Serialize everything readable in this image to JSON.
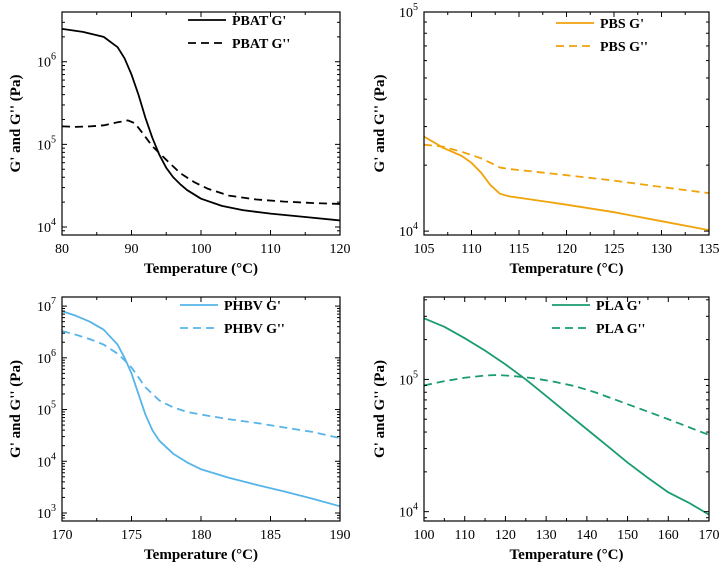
{
  "chart_data": [
    {
      "id": "pbat",
      "type": "line",
      "xlabel": "Temperature (°C)",
      "ylabel": "G' and G'' (Pa)",
      "xlim": [
        80,
        120
      ],
      "ylim": [
        8000,
        4000000
      ],
      "yscale": "log",
      "xticks": [
        80,
        90,
        100,
        110,
        120
      ],
      "xtick_labels": [
        "80",
        "90",
        "100",
        "110",
        "120"
      ],
      "yticks": [
        10000,
        100000,
        1000000
      ],
      "ytick_labels": [
        [
          "10",
          "4"
        ],
        [
          "10",
          "5"
        ],
        [
          "10",
          "6"
        ]
      ],
      "legend_position": "top-right",
      "series": [
        {
          "name": "PBAT G'",
          "color": "#000000",
          "dash": "solid",
          "x": [
            80,
            83,
            86,
            88,
            89,
            90,
            91,
            92,
            93,
            94,
            95,
            96,
            97,
            98,
            100,
            103,
            106,
            110,
            115,
            120
          ],
          "y": [
            2500000,
            2300000,
            2000000,
            1500000,
            1100000,
            700000,
            400000,
            210000,
            120000,
            75000,
            52000,
            40000,
            33000,
            28000,
            22000,
            18000,
            16000,
            14500,
            13200,
            12000
          ]
        },
        {
          "name": "PBAT G''",
          "color": "#000000",
          "dash": "dashed",
          "x": [
            80,
            82,
            84,
            86,
            88,
            89.5,
            90.5,
            91.5,
            93,
            95,
            97,
            99,
            101,
            104,
            108,
            112,
            116,
            120
          ],
          "y": [
            165000,
            163000,
            165000,
            170000,
            185000,
            195000,
            180000,
            140000,
            95000,
            65000,
            45000,
            35000,
            29000,
            24000,
            21500,
            20300,
            19500,
            19000
          ]
        }
      ]
    },
    {
      "id": "pbs",
      "type": "line",
      "xlabel": "Temperature (°C)",
      "ylabel": "G' and G'' (Pa)",
      "xlim": [
        105,
        135
      ],
      "ylim": [
        9600,
        100000
      ],
      "yscale": "log",
      "xticks": [
        105,
        110,
        115,
        120,
        125,
        130,
        135
      ],
      "xtick_labels": [
        "105",
        "110",
        "115",
        "120",
        "125",
        "130",
        "135"
      ],
      "yticks": [
        10000,
        100000
      ],
      "ytick_labels": [
        [
          "10",
          "4"
        ],
        [
          "10",
          "5"
        ]
      ],
      "legend_position": "top-right",
      "series": [
        {
          "name": "PBS G'",
          "color": "#f0a30a",
          "dash": "solid",
          "x": [
            105,
            106,
            107,
            108,
            109,
            110,
            111,
            112,
            113,
            114,
            116,
            118,
            120,
            125,
            130,
            135
          ],
          "y": [
            27000,
            25500,
            24000,
            23000,
            22000,
            20500,
            18500,
            16200,
            14800,
            14400,
            14000,
            13600,
            13200,
            12200,
            11100,
            10100
          ]
        },
        {
          "name": "PBS G''",
          "color": "#f0a30a",
          "dash": "dashed",
          "x": [
            105,
            107,
            109,
            111,
            112,
            113,
            114,
            116,
            120,
            125,
            130,
            135
          ],
          "y": [
            24800,
            24300,
            23000,
            21500,
            20500,
            19500,
            19200,
            18800,
            18000,
            17000,
            15900,
            14900
          ]
        }
      ]
    },
    {
      "id": "phbv",
      "type": "line",
      "xlabel": "Temperature (°C)",
      "ylabel": "G' and G'' (Pa)",
      "xlim": [
        170,
        190
      ],
      "ylim": [
        700,
        15000000
      ],
      "yscale": "log",
      "xticks": [
        170,
        175,
        180,
        185,
        190
      ],
      "xtick_labels": [
        "170",
        "175",
        "180",
        "185",
        "190"
      ],
      "yticks": [
        1000,
        10000,
        100000,
        1000000,
        10000000
      ],
      "ytick_labels": [
        [
          "10",
          "3"
        ],
        [
          "10",
          "4"
        ],
        [
          "10",
          "5"
        ],
        [
          "10",
          "6"
        ],
        [
          "10",
          "7"
        ]
      ],
      "legend_position": "top-right",
      "series": [
        {
          "name": "PHBV G'",
          "color": "#56b4e9",
          "dash": "solid",
          "x": [
            170,
            171,
            172,
            173,
            174,
            174.5,
            175,
            175.5,
            176,
            176.5,
            177,
            178,
            179,
            180,
            182,
            184,
            186,
            188,
            190
          ],
          "y": [
            8000000,
            6500000,
            5000000,
            3500000,
            1800000,
            1000000,
            500000,
            200000,
            80000,
            40000,
            25000,
            14000,
            9500,
            7000,
            4800,
            3500,
            2600,
            1900,
            1350
          ]
        },
        {
          "name": "PHBV G''",
          "color": "#56b4e9",
          "dash": "dashed",
          "x": [
            170,
            171,
            172,
            173,
            174,
            174.5,
            175,
            175.5,
            176,
            177,
            178,
            179,
            180,
            182,
            184,
            186,
            188,
            190
          ],
          "y": [
            3300000,
            2800000,
            2300000,
            1800000,
            1200000,
            900000,
            650000,
            420000,
            270000,
            150000,
            110000,
            90000,
            80000,
            65000,
            55000,
            45000,
            37000,
            28000
          ]
        }
      ]
    },
    {
      "id": "pla",
      "type": "line",
      "xlabel": "Temperature (°C)",
      "ylabel": "G' and G'' (Pa)",
      "xlim": [
        100,
        170
      ],
      "ylim": [
        8500,
        420000
      ],
      "yscale": "log",
      "xticks": [
        100,
        110,
        120,
        130,
        140,
        150,
        160,
        170
      ],
      "xtick_labels": [
        "100",
        "110",
        "120",
        "130",
        "140",
        "150",
        "160",
        "170"
      ],
      "yticks": [
        10000,
        100000
      ],
      "ytick_labels": [
        [
          "10",
          "4"
        ],
        [
          "10",
          "5"
        ]
      ],
      "legend_position": "top-right",
      "series": [
        {
          "name": "PLA G'",
          "color": "#1a9c6e",
          "dash": "solid",
          "x": [
            100,
            105,
            110,
            115,
            120,
            125,
            130,
            135,
            140,
            145,
            150,
            155,
            160,
            165,
            170
          ],
          "y": [
            290000,
            250000,
            205000,
            165000,
            130000,
            100000,
            75000,
            56000,
            42000,
            31500,
            23500,
            18000,
            14000,
            11700,
            9500
          ]
        },
        {
          "name": "PLA G''",
          "color": "#1a9c6e",
          "dash": "dashed",
          "x": [
            100,
            105,
            110,
            115,
            118,
            122,
            127,
            132,
            137,
            142,
            150,
            160,
            170
          ],
          "y": [
            90000,
            97000,
            103000,
            107000,
            108000,
            106000,
            102000,
            96000,
            89000,
            80000,
            65000,
            50000,
            38000
          ]
        }
      ]
    }
  ]
}
